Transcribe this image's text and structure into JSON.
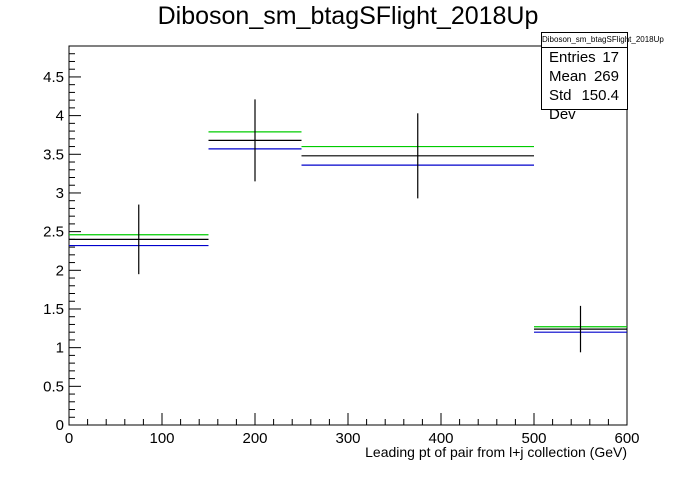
{
  "chart_data": {
    "type": "histogram",
    "title": "Diboson_sm_btagSFlight_2018Up",
    "xlabel": "Leading pt of pair from l+j collection (GeV)",
    "ylabel": "",
    "xlim": [
      0,
      600
    ],
    "ylim": [
      0,
      4.9
    ],
    "grid": false,
    "x_ticks": [
      "0",
      "100",
      "200",
      "300",
      "400",
      "500",
      "600"
    ],
    "y_ticks": [
      "0",
      "0.5",
      "1",
      "1.5",
      "2",
      "2.5",
      "3",
      "3.5",
      "4",
      "4.5"
    ],
    "bins": [
      {
        "low": 0,
        "high": 150,
        "center": 75,
        "value": 2.4,
        "error": 0.45,
        "up": 2.46,
        "down": 2.32
      },
      {
        "low": 150,
        "high": 250,
        "center": 200,
        "value": 3.68,
        "error": 0.53,
        "up": 3.79,
        "down": 3.57
      },
      {
        "low": 250,
        "high": 500,
        "center": 375,
        "value": 3.48,
        "error": 0.55,
        "up": 3.6,
        "down": 3.36
      },
      {
        "low": 500,
        "high": 600,
        "center": 550,
        "value": 1.24,
        "error": 0.3,
        "up": 1.27,
        "down": 1.2
      }
    ],
    "colors": {
      "nominal": "#000000",
      "up": "#00cc00",
      "down": "#0000cc"
    },
    "stats": {
      "name": "Diboson_sm_btagSFlight_2018Up",
      "entries_label": "Entries",
      "entries": "17",
      "mean_label": "Mean",
      "mean": "269",
      "stddev_label": "Std Dev",
      "stddev": "150.4"
    }
  }
}
